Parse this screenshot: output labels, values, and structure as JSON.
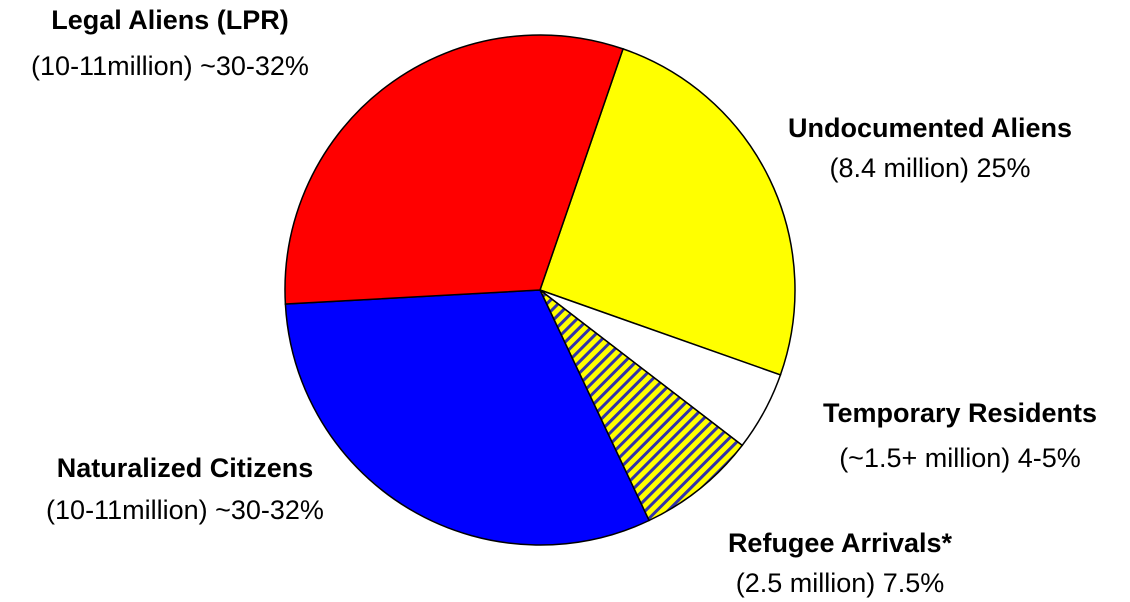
{
  "chart_data": {
    "type": "pie",
    "categories": [
      "Undocumented Aliens",
      "Temporary Residents",
      "Refugee Arrivals*",
      "Naturalized Citizens",
      "Legal Aliens (LPR)"
    ],
    "values": [
      25,
      5,
      7.5,
      31,
      31
    ],
    "value_labels": [
      "(8.4 million)  25%",
      "(~1.5+ million)  4-5%",
      "(2.5 million)  7.5%",
      "(10-11million)  ~30-32%",
      "(10-11million)  ~30-32%"
    ],
    "colors": [
      "#ffff00",
      "#ffffff",
      "#ffff00",
      "#0000ff",
      "#ff0000"
    ],
    "hatch_colors": [
      null,
      null,
      "#3333aa",
      null,
      null
    ]
  }
}
